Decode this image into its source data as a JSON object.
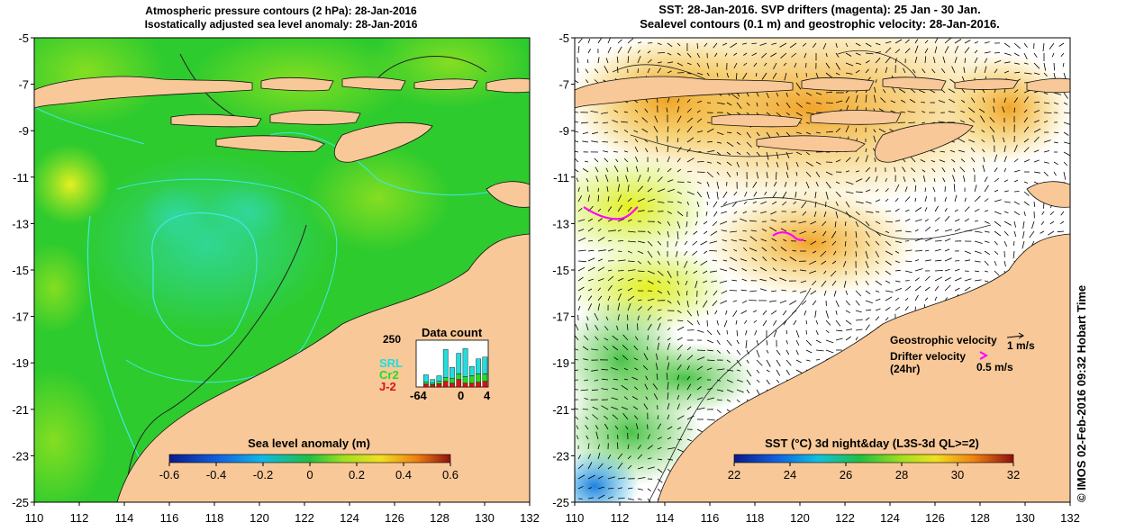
{
  "left_panel": {
    "title_line1": "Atmospheric pressure contours (2 hPa): 28-Jan-2016",
    "title_line2": "Isostatically adjusted sea level anomaly: 28-Jan-2016",
    "colorbar_title": "Sea level anomaly (m)",
    "colorbar_ticks": [
      "-0.6",
      "-0.4",
      "-0.2",
      "0",
      "0.2",
      "0.4",
      "0.6"
    ],
    "inset": {
      "title": "Data count",
      "ymax_label": "250",
      "x_labels": [
        "-64",
        "0",
        "4"
      ],
      "missions": [
        {
          "name": "SRL",
          "color": "#22dddd"
        },
        {
          "name": "Cr2",
          "color": "#22dd22"
        },
        {
          "name": "J-2",
          "color": "#dd1111"
        }
      ],
      "bars": [
        {
          "SRL": 0,
          "Cr2": 0,
          "J-2": 0
        },
        {
          "SRL": 40,
          "Cr2": 10,
          "J-2": 15
        },
        {
          "SRL": 20,
          "Cr2": 8,
          "J-2": 12
        },
        {
          "SRL": 30,
          "Cr2": 12,
          "J-2": 18
        },
        {
          "SRL": 150,
          "Cr2": 20,
          "J-2": 30
        },
        {
          "SRL": 60,
          "Cr2": 25,
          "J-2": 20
        },
        {
          "SRL": 110,
          "Cr2": 30,
          "J-2": 40
        },
        {
          "SRL": 150,
          "Cr2": 35,
          "J-2": 20
        },
        {
          "SRL": 50,
          "Cr2": 40,
          "J-2": 20
        },
        {
          "SRL": 80,
          "Cr2": 45,
          "J-2": 25
        },
        {
          "SRL": 90,
          "Cr2": 40,
          "J-2": 30
        }
      ]
    }
  },
  "right_panel": {
    "title_line1": "SST: 28-Jan-2016. SVP drifters (magenta): 25 Jan - 30 Jan.",
    "title_line2": "Sealevel contours (0.1 m) and geostrophic velocity: 28-Jan-2016.",
    "colorbar_title": "SST (°C) 3d night&day (L3S-3d QL>=2)",
    "colorbar_ticks": [
      "22",
      "24",
      "26",
      "28",
      "30",
      "32"
    ],
    "legend": {
      "geostrophic_label": "Geostrophic velocity",
      "geostrophic_scale": "1 m/s",
      "drifter_label_line1": "Drifter velocity",
      "drifter_label_line2": "(24hr)",
      "drifter_scale": "0.5 m/s",
      "drifter_color": "#ff00ff"
    },
    "credit": "© IMOS 02-Feb-2016 09:32 Hobart Time"
  },
  "axes": {
    "lat_ticks": [
      "-5",
      "-7",
      "-9",
      "-11",
      "-13",
      "-15",
      "-17",
      "-19",
      "-21",
      "-23",
      "-25"
    ],
    "lon_ticks": [
      "110",
      "112",
      "114",
      "116",
      "118",
      "120",
      "122",
      "124",
      "126",
      "128",
      "130",
      "132"
    ]
  },
  "colors": {
    "land": "#f8c898",
    "sla_base": "#2ecb2e",
    "sst_base": "#ffffff"
  }
}
